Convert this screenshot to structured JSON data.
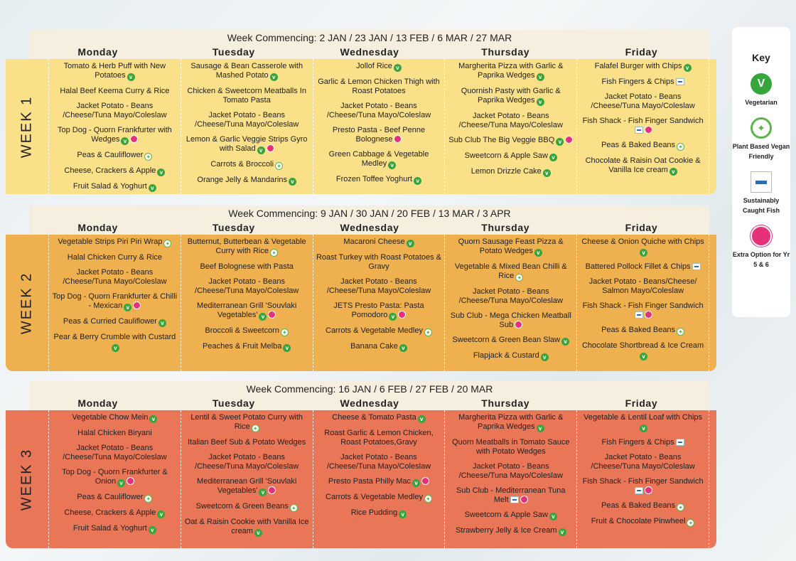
{
  "weeks": [
    {
      "label": "WEEK 1",
      "commencing": "Week Commencing: 2 JAN / 23 JAN / 13 FEB / 6 MAR / 27 MAR",
      "days": [
        {
          "name": "Monday",
          "items": [
            {
              "text": "Tomato & Herb Puff with New Potatoes",
              "icons": [
                "v"
              ]
            },
            {
              "text": "Halal Beef Keema Curry & Rice",
              "icons": []
            },
            {
              "text": "Jacket Potato - Beans /Cheese/Tuna Mayo/Coleslaw",
              "icons": []
            },
            {
              "text": "Top Dog - Quorn Frankfurter with Wedges",
              "icons": [
                "v",
                "e"
              ]
            },
            {
              "text": "Peas & Cauliflower",
              "icons": [
                "p"
              ]
            },
            {
              "text": "Cheese, Crackers & Apple",
              "icons": [
                "v"
              ]
            },
            {
              "text": "Fruit Salad & Yoghurt",
              "icons": [
                "v"
              ]
            }
          ]
        },
        {
          "name": "Tuesday",
          "items": [
            {
              "text": "Sausage & Bean Casserole with Mashed Potato",
              "icons": [
                "v"
              ]
            },
            {
              "text": "Chicken & Sweetcorn Meatballs In Tomato Pasta",
              "icons": []
            },
            {
              "text": "Jacket Potato - Beans /Cheese/Tuna Mayo/Coleslaw",
              "icons": []
            },
            {
              "text": "Lemon & Garlic Veggie Strips Gyro with Salad",
              "icons": [
                "v",
                "e"
              ]
            },
            {
              "text": "Carrots & Broccoli",
              "icons": [
                "p"
              ]
            },
            {
              "text": "Orange Jelly & Mandarins",
              "icons": [
                "v"
              ]
            }
          ]
        },
        {
          "name": "Wednesday",
          "items": [
            {
              "text": "Jollof Rice",
              "icons": [
                "v"
              ]
            },
            {
              "text": "Garlic & Lemon Chicken Thigh with Roast Potatoes",
              "icons": []
            },
            {
              "text": "Jacket Potato - Beans /Cheese/Tuna Mayo/Coleslaw",
              "icons": []
            },
            {
              "text": "Presto Pasta - Beef Penne Bolognese",
              "icons": [
                "e"
              ]
            },
            {
              "text": "Green Cabbage & Vegetable Medley",
              "icons": [
                "v"
              ]
            },
            {
              "text": "Frozen Toffee Yoghurt",
              "icons": [
                "v"
              ]
            }
          ]
        },
        {
          "name": "Thursday",
          "items": [
            {
              "text": "Margherita Pizza with Garlic & Paprika Wedges",
              "icons": [
                "v"
              ]
            },
            {
              "text": "Quornish Pasty with Garlic & Paprika Wedges",
              "icons": [
                "v"
              ]
            },
            {
              "text": "Jacket Potato - Beans /Cheese/Tuna Mayo/Coleslaw",
              "icons": []
            },
            {
              "text": "Sub Club The Big Veggie BBQ",
              "icons": [
                "v",
                "e"
              ]
            },
            {
              "text": "Sweetcorn & Apple Saw",
              "icons": [
                "v"
              ]
            },
            {
              "text": "Lemon Drizzle Cake",
              "icons": [
                "v"
              ]
            }
          ]
        },
        {
          "name": "Friday",
          "items": [
            {
              "text": "Falafel Burger with Chips",
              "icons": [
                "v"
              ]
            },
            {
              "text": "Fish Fingers & Chips",
              "icons": [
                "f"
              ]
            },
            {
              "text": "Jacket Potato - Beans /Cheese/Tuna Mayo/Coleslaw",
              "icons": []
            },
            {
              "text": "Fish Shack - Fish Finger Sandwich",
              "icons": [
                "f",
                "e"
              ]
            },
            {
              "text": "Peas & Baked Beans",
              "icons": [
                "p"
              ]
            },
            {
              "text": "Chocolate & Raisin Oat Cookie & Vanilla Ice cream",
              "icons": [
                "v"
              ]
            }
          ]
        }
      ]
    },
    {
      "label": "WEEK 2",
      "commencing": "Week Commencing: 9 JAN / 30 JAN / 20 FEB / 13 MAR / 3 APR",
      "days": [
        {
          "name": "Monday",
          "items": [
            {
              "text": "Vegetable Strips Piri Piri Wrap",
              "icons": [
                "p"
              ]
            },
            {
              "text": "Halal Chicken Curry & Rice",
              "icons": []
            },
            {
              "text": "Jacket Potato - Beans /Cheese/Tuna Mayo/Coleslaw",
              "icons": []
            },
            {
              "text": "Top Dog - Quorn Frankfurter & Chilli - Mexican",
              "icons": [
                "v",
                "e"
              ]
            },
            {
              "text": "Peas & Curried Cauliflower",
              "icons": [
                "v"
              ]
            },
            {
              "text": "Pear & Berry Crumble with Custard",
              "icons": [
                "v"
              ]
            }
          ]
        },
        {
          "name": "Tuesday",
          "items": [
            {
              "text": "Butternut, Butterbean & Vegetable Curry with Rice",
              "icons": [
                "p"
              ]
            },
            {
              "text": "Beef Bolognese with Pasta",
              "icons": []
            },
            {
              "text": "Jacket Potato - Beans /Cheese/Tuna Mayo/Coleslaw",
              "icons": []
            },
            {
              "text": "Mediterranean Grill 'Souvlaki Vegetables'",
              "icons": [
                "v",
                "e"
              ]
            },
            {
              "text": "Broccoli & Sweetcorn",
              "icons": [
                "p"
              ]
            },
            {
              "text": "Peaches & Fruit Melba",
              "icons": [
                "v"
              ]
            }
          ]
        },
        {
          "name": "Wednesday",
          "items": [
            {
              "text": "Macaroni Cheese",
              "icons": [
                "v"
              ]
            },
            {
              "text": "Roast Turkey with Roast Potatoes & Gravy",
              "icons": []
            },
            {
              "text": "Jacket Potato - Beans /Cheese/Tuna Mayo/Coleslaw",
              "icons": []
            },
            {
              "text": "JETS Presto Pasta: Pasta Pomodoro",
              "icons": [
                "v",
                "e"
              ]
            },
            {
              "text": "Carrots & Vegetable Medley",
              "icons": [
                "p"
              ]
            },
            {
              "text": "Banana Cake",
              "icons": [
                "v"
              ]
            }
          ]
        },
        {
          "name": "Thursday",
          "items": [
            {
              "text": "Quorn Sausage Feast Pizza & Potato Wedges",
              "icons": [
                "v"
              ]
            },
            {
              "text": "Vegetable & Mixed Bean Chilli & Rice",
              "icons": [
                "p"
              ]
            },
            {
              "text": "Jacket Potato - Beans /Cheese/Tuna Mayo/Coleslaw",
              "icons": []
            },
            {
              "text": "Sub Club - Mega Chicken Meatball Sub",
              "icons": [
                "e"
              ]
            },
            {
              "text": "Sweetcorn & Green Bean Slaw",
              "icons": [
                "v"
              ]
            },
            {
              "text": "Flapjack & Custard",
              "icons": [
                "v"
              ]
            }
          ]
        },
        {
          "name": "Friday",
          "items": [
            {
              "text": "Cheese & Onion Quiche with Chips",
              "icons": [
                "v"
              ]
            },
            {
              "text": "Battered Pollock Fillet & Chips",
              "icons": [
                "f"
              ]
            },
            {
              "text": "Jacket Potato - Beans/Cheese/ Salmon Mayo/Coleslaw",
              "icons": []
            },
            {
              "text": "Fish Shack - Fish Finger Sandwich",
              "icons": [
                "f",
                "e"
              ]
            },
            {
              "text": "Peas & Baked Beans",
              "icons": [
                "p"
              ]
            },
            {
              "text": "Chocolate Shortbread & Ice Cream",
              "icons": [
                "v"
              ]
            }
          ]
        }
      ]
    },
    {
      "label": "WEEK 3",
      "commencing": "Week Commencing: 16 JAN / 6 FEB / 27 FEB / 20 MAR",
      "days": [
        {
          "name": "Monday",
          "items": [
            {
              "text": "Vegetable Chow Mein",
              "icons": [
                "v"
              ]
            },
            {
              "text": "Halal Chicken Biryani",
              "icons": []
            },
            {
              "text": "Jacket Potato - Beans /Cheese/Tuna Mayo/Coleslaw",
              "icons": []
            },
            {
              "text": "Top Dog - Quorn Frankfurter & Onion",
              "icons": [
                "v",
                "e"
              ]
            },
            {
              "text": "Peas & Cauliflower",
              "icons": [
                "p"
              ]
            },
            {
              "text": "Cheese, Crackers & Apple",
              "icons": [
                "v"
              ]
            },
            {
              "text": "Fruit Salad & Yoghurt",
              "icons": [
                "v"
              ]
            }
          ]
        },
        {
          "name": "Tuesday",
          "items": [
            {
              "text": "Lentil & Sweet Potato Curry with Rice",
              "icons": [
                "p"
              ]
            },
            {
              "text": "Italian Beef Sub & Potato Wedges",
              "icons": []
            },
            {
              "text": "Jacket Potato - Beans /Cheese/Tuna Mayo/Coleslaw",
              "icons": []
            },
            {
              "text": "Mediterranean Grill 'Souvlaki Vegetables'",
              "icons": [
                "v",
                "e"
              ]
            },
            {
              "text": "Sweetcorn & Green Beans",
              "icons": [
                "p"
              ]
            },
            {
              "text": "Oat & Raisin Cookie with Vanilla Ice cream",
              "icons": [
                "v"
              ]
            }
          ]
        },
        {
          "name": "Wednesday",
          "items": [
            {
              "text": "Cheese & Tomato Pasta",
              "icons": [
                "v"
              ]
            },
            {
              "text": "Roast Garlic & Lemon Chicken, Roast Potatoes,Gravy",
              "icons": []
            },
            {
              "text": "Jacket Potato - Beans /Cheese/Tuna Mayo/Coleslaw",
              "icons": []
            },
            {
              "text": "Presto Pasta Philly Mac",
              "icons": [
                "v",
                "e"
              ]
            },
            {
              "text": "Carrots & Vegetable Medley",
              "icons": [
                "p"
              ]
            },
            {
              "text": "Rice Pudding",
              "icons": [
                "v"
              ]
            }
          ]
        },
        {
          "name": "Thursday",
          "items": [
            {
              "text": "Margherita Pizza with Garlic & Paprika Wedges",
              "icons": [
                "v"
              ]
            },
            {
              "text": "Quorn Meatballs in Tomato Sauce with Potato Wedges",
              "icons": []
            },
            {
              "text": "Jacket Potato - Beans /Cheese/Tuna Mayo/Coleslaw",
              "icons": []
            },
            {
              "text": "Sub Club - Mediterranean Tuna Melt",
              "icons": [
                "f",
                "e"
              ]
            },
            {
              "text": "Sweetcorn & Apple Saw",
              "icons": [
                "v"
              ]
            },
            {
              "text": "Strawberry Jelly & Ice Cream",
              "icons": [
                "v"
              ]
            }
          ]
        },
        {
          "name": "Friday",
          "items": [
            {
              "text": "Vegetable & Lentil Loaf with Chips",
              "icons": [
                "v"
              ]
            },
            {
              "text": "Fish Fingers & Chips",
              "icons": [
                "f"
              ]
            },
            {
              "text": "Jacket Potato - Beans /Cheese/Tuna Mayo/Coleslaw",
              "icons": []
            },
            {
              "text": "Fish Shack - Fish Finger Sandwich",
              "icons": [
                "f",
                "e"
              ]
            },
            {
              "text": "Peas & Baked Beans",
              "icons": [
                "p"
              ]
            },
            {
              "text": "Fruit & Chocolate Pinwheel",
              "icons": [
                "p"
              ]
            }
          ]
        }
      ]
    }
  ],
  "key": {
    "title": "Key",
    "vegetarian": "Vegetarian",
    "vegetarian_symbol": "V",
    "plant": "Plant Based Vegan Friendly",
    "fish": "Sustainably Caught Fish",
    "extra": "Extra Option for Yr 5 & 6"
  },
  "colors": {
    "week1": "#fbe08a",
    "week2": "#efb04f",
    "week3": "#ea7658",
    "vegetarian": "#37a53b",
    "extra": "#e5317a"
  }
}
